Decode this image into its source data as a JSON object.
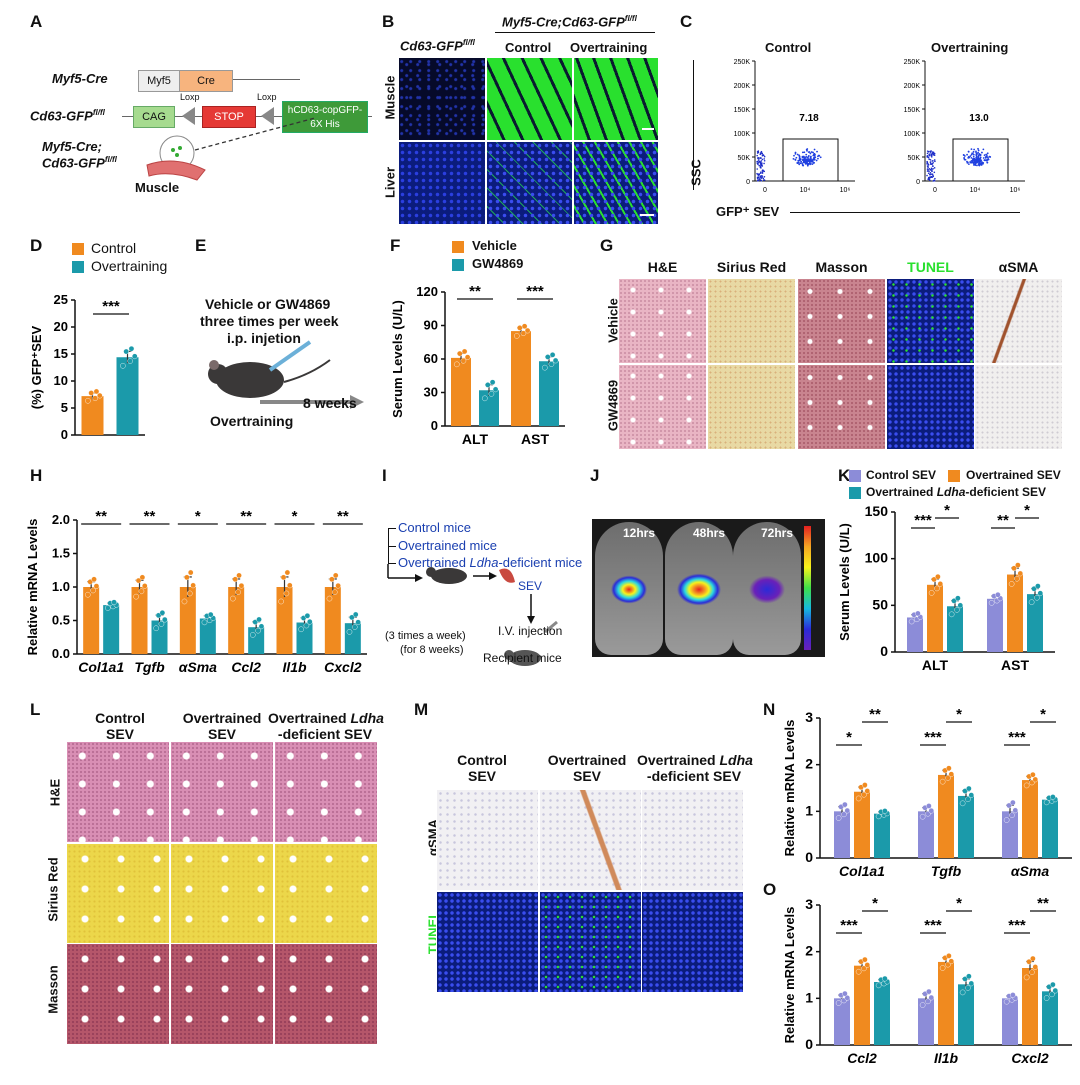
{
  "colors": {
    "control": "#F08A1F",
    "overtraining": "#1B9AAA",
    "vehicle": "#F08A1F",
    "gw": "#1B9AAA",
    "ctrl_sev": "#8C8CD8",
    "ot_sev": "#F08A1F",
    "ldha_sev": "#1B9AAA",
    "gfp": "#29E02E",
    "nuclei": "#1C2CC8"
  },
  "panelA": {
    "label": "A",
    "myf5cre": "Myf5-Cre",
    "myf5": "Myf5",
    "cre": "Cre",
    "cd63": "Cd63-GFP",
    "cd63sup": "fl/fl",
    "cag": "CAG",
    "loxp1": "Loxp",
    "loxp2": "Loxp",
    "stop": "STOP",
    "hcd63": "hCD63-copGFP-",
    "his": "6X His",
    "cross1": "Myf5-Cre;",
    "cross2": "Cd63-GFP",
    "cross2sup": "fl/fl",
    "muscle": "Muscle"
  },
  "panelB": {
    "label": "B",
    "g1": "Cd63-GFP",
    "g1sup": "fl/fl",
    "g2": "Myf5-Cre;Cd63-GFP",
    "g2sup": "fl/fl",
    "c1": "Control",
    "c2": "Overtraining",
    "r1": "Muscle",
    "r2": "Liver"
  },
  "panelC": {
    "label": "C",
    "c1": "Control",
    "c2": "Overtraining",
    "ylab": "SSC",
    "xlab": "GFP⁺ SEV",
    "g1": "7.18",
    "g2": "13.0",
    "yticks": [
      "250K",
      "200K",
      "150K",
      "100K",
      "50K",
      "0"
    ],
    "xticks": [
      "0",
      "10⁴",
      "10⁶"
    ]
  },
  "panelD": {
    "label": "D",
    "leg1": "Control",
    "leg2": "Overtraining",
    "ylab": "(%) GFP⁺SEV",
    "sig": "***"
  },
  "panelE": {
    "label": "E",
    "l1": "Vehicle or GW4869",
    "l2": "three times per week",
    "l3": "i.p. injetion",
    "weeks": "8 weeks",
    "ot": "Overtraining"
  },
  "panelF": {
    "label": "F",
    "leg1": "Vehicle",
    "leg2": "GW4869",
    "ylab": "Serum Levels (U/L)",
    "sig1": "**",
    "sig2": "***"
  },
  "panelG": {
    "label": "G",
    "cols": [
      "H&E",
      "Sirius Red",
      "Masson",
      "TUNEL",
      "αSMA"
    ],
    "rows": [
      "Vehicle",
      "GW4869"
    ]
  },
  "panelH": {
    "label": "H",
    "ylab": "Relative mRNA Levels",
    "sigs": [
      "**",
      "**",
      "*",
      "**",
      "*",
      "**"
    ]
  },
  "panelI": {
    "label": "I",
    "m1": "Control mice",
    "m2": "Overtrained mice",
    "m3a": "Overtrained ",
    "m3b": "Ldha",
    "m3c": "-deficient mice",
    "sev": "SEV",
    "iv": "I.V. injection",
    "sch1": "(3 times a week)",
    "sch2": "(for 8 weeks)",
    "rec": "Recipient mice"
  },
  "panelJ": {
    "label": "J",
    "t1": "12hrs",
    "t2": "48hrs",
    "t3": "72hrs"
  },
  "panelK": {
    "label": "K",
    "leg1": "Control SEV",
    "leg2": "Overtrained SEV",
    "leg3a": "Overtrained ",
    "leg3b": "Ldha",
    "leg3c": "-deficient SEV",
    "ylab": "Serum Levels (U/L)",
    "sigs": [
      "***",
      "*",
      "**",
      "*"
    ]
  },
  "panelL": {
    "label": "L",
    "c1a": "Control",
    "c1b": "SEV",
    "c2a": "Overtrained",
    "c2b": "SEV",
    "c3a": "Overtrained ",
    "c3b": "Ldha",
    "c3c": "-deficient SEV",
    "rows": [
      "H&E",
      "Sirius Red",
      "Masson"
    ]
  },
  "panelM": {
    "label": "M",
    "c1a": "Control",
    "c1b": "SEV",
    "c2a": "Overtrained",
    "c2b": "SEV",
    "c3a": "Overtrained ",
    "c3b": "Ldha",
    "c3c": "-deficient SEV",
    "rows": [
      "αSMA",
      "TUNEL"
    ]
  },
  "panelN": {
    "label": "N",
    "ylab": "Relative mRNA Levels",
    "sigs": [
      "*",
      "**",
      "***",
      "*",
      "***",
      "*"
    ]
  },
  "panelO": {
    "label": "O",
    "ylab": "Relative mRNA Levels",
    "sigs": [
      "***",
      "*",
      "***",
      "*",
      "***",
      "**"
    ]
  },
  "chart_data": [
    {
      "id": "D",
      "type": "bar",
      "categories": [
        "Control",
        "Overtraining"
      ],
      "values": [
        7.2,
        14.4
      ],
      "errors": [
        0.6,
        1.1
      ],
      "ylim": [
        0,
        25
      ],
      "yticks": [
        "0",
        "5",
        "10",
        "15",
        "20",
        "25"
      ],
      "ylabel": "(%) GFP⁺SEV"
    },
    {
      "id": "F",
      "type": "bar",
      "categories": [
        "ALT",
        "AST"
      ],
      "series": [
        {
          "name": "Vehicle",
          "values": [
            61,
            85
          ],
          "errors": [
            4,
            3
          ]
        },
        {
          "name": "GW4869",
          "values": [
            32,
            58
          ],
          "errors": [
            5,
            4
          ]
        }
      ],
      "ylim": [
        0,
        120
      ],
      "yticks": [
        "0",
        "30",
        "60",
        "90",
        "120"
      ],
      "ylabel": "Serum Levels (U/L)"
    },
    {
      "id": "H",
      "type": "bar",
      "categories": [
        "Col1a1",
        "Tgfb",
        "αSma",
        "Ccl2",
        "Il1b",
        "Cxcl2"
      ],
      "series": [
        {
          "name": "Vehicle",
          "values": [
            1.0,
            1.0,
            1.0,
            1.0,
            1.0,
            1.0
          ],
          "errors": [
            0.08,
            0.1,
            0.15,
            0.12,
            0.15,
            0.12
          ]
        },
        {
          "name": "GW4869",
          "values": [
            0.73,
            0.5,
            0.53,
            0.4,
            0.47,
            0.46
          ],
          "errors": [
            0.03,
            0.08,
            0.04,
            0.08,
            0.07,
            0.09
          ]
        }
      ],
      "ylim": [
        0,
        2.0
      ],
      "yticks": [
        "0.0",
        "0.5",
        "1.0",
        "1.5",
        "2.0"
      ],
      "ylabel": "Relative mRNA Levels"
    },
    {
      "id": "K",
      "type": "bar",
      "categories": [
        "ALT",
        "AST"
      ],
      "series": [
        {
          "name": "Control SEV",
          "values": [
            37,
            57
          ],
          "errors": [
            3,
            3
          ]
        },
        {
          "name": "Overtrained SEV",
          "values": [
            72,
            83
          ],
          "errors": [
            6,
            7
          ]
        },
        {
          "name": "Overtrained Ldha-deficient SEV",
          "values": [
            49,
            62
          ],
          "errors": [
            6,
            6
          ]
        }
      ],
      "ylim": [
        0,
        150
      ],
      "yticks": [
        "0",
        "50",
        "100",
        "150"
      ],
      "ylabel": "Serum Levels (U/L)"
    },
    {
      "id": "N",
      "type": "bar",
      "categories": [
        "Col1a1",
        "Tgfb",
        "αSma"
      ],
      "series": [
        {
          "name": "Control SEV",
          "values": [
            1.0,
            1.0,
            1.0
          ],
          "errors": [
            0.1,
            0.08,
            0.13
          ]
        },
        {
          "name": "Overtrained SEV",
          "values": [
            1.42,
            1.78,
            1.67
          ],
          "errors": [
            0.1,
            0.1,
            0.08
          ]
        },
        {
          "name": "Overtrained Ldha-deficient SEV",
          "values": [
            0.95,
            1.33,
            1.25
          ],
          "errors": [
            0.04,
            0.11,
            0.04
          ]
        }
      ],
      "ylim": [
        0,
        3
      ],
      "yticks": [
        "0",
        "1",
        "2",
        "3"
      ],
      "ylabel": "Relative mRNA Levels"
    },
    {
      "id": "O",
      "type": "bar",
      "categories": [
        "Ccl2",
        "Il1b",
        "Cxcl2"
      ],
      "series": [
        {
          "name": "Control SEV",
          "values": [
            1.0,
            1.0,
            1.0
          ],
          "errors": [
            0.07,
            0.1,
            0.05
          ]
        },
        {
          "name": "Overtrained SEV",
          "values": [
            1.7,
            1.78,
            1.65
          ],
          "errors": [
            0.09,
            0.09,
            0.14
          ]
        },
        {
          "name": "Overtrained Ldha-deficient SEV",
          "values": [
            1.35,
            1.3,
            1.15
          ],
          "errors": [
            0.05,
            0.12,
            0.1
          ]
        }
      ],
      "ylim": [
        0,
        3
      ],
      "yticks": [
        "0",
        "1",
        "2",
        "3"
      ],
      "ylabel": "Relative mRNA Levels"
    }
  ]
}
